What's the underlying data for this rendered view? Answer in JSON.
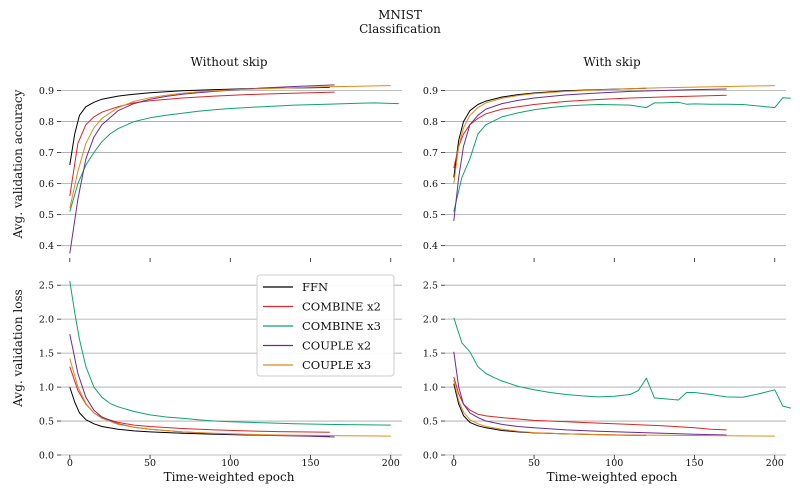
{
  "figure": {
    "title_line1": "MNIST",
    "title_line2": "Classification",
    "col_titles": [
      "Without skip",
      "With skip"
    ],
    "ylabels": [
      "Avg. validation accuracy",
      "Avg. validation loss"
    ],
    "xlabel": "Time-weighted epoch"
  },
  "colors": {
    "FFN": "#000000",
    "COMBINE x2": "#d62728",
    "COMBINE x3": "#10a36b",
    "COUPLE x2": "#6a2c91",
    "COUPLE x3": "#e08a1e"
  },
  "legend": [
    "FFN",
    "COMBINE x2",
    "COMBINE x3",
    "COUPLE x2",
    "COUPLE x3"
  ],
  "chart_data": [
    {
      "type": "line",
      "title": "Without skip",
      "ylabel": "Avg. validation accuracy",
      "xlabel": "",
      "xlim": [
        -8,
        207
      ],
      "ylim": [
        0.37,
        0.95
      ],
      "xticks": [
        0,
        50,
        100,
        150,
        200
      ],
      "yticks": [
        0.4,
        0.5,
        0.6,
        0.7,
        0.8,
        0.9
      ],
      "show_xticklabels": false,
      "series": [
        {
          "name": "FFN",
          "x": [
            0,
            3,
            6,
            10,
            15,
            20,
            30,
            40,
            50,
            70,
            90,
            110,
            130,
            150,
            162
          ],
          "y": [
            0.66,
            0.76,
            0.82,
            0.848,
            0.862,
            0.872,
            0.882,
            0.888,
            0.893,
            0.899,
            0.903,
            0.906,
            0.908,
            0.909,
            0.91
          ]
        },
        {
          "name": "COMBINE x2",
          "x": [
            0,
            5,
            10,
            15,
            20,
            30,
            40,
            50,
            70,
            90,
            110,
            130,
            150,
            165
          ],
          "y": [
            0.56,
            0.73,
            0.79,
            0.815,
            0.83,
            0.848,
            0.86,
            0.867,
            0.876,
            0.882,
            0.887,
            0.89,
            0.893,
            0.895
          ]
        },
        {
          "name": "COMBINE x3",
          "x": [
            0,
            5,
            10,
            15,
            20,
            25,
            30,
            40,
            50,
            60,
            70,
            80,
            90,
            100,
            120,
            140,
            160,
            180,
            190,
            205
          ],
          "y": [
            0.51,
            0.6,
            0.66,
            0.7,
            0.735,
            0.76,
            0.777,
            0.8,
            0.812,
            0.82,
            0.827,
            0.833,
            0.838,
            0.842,
            0.848,
            0.853,
            0.856,
            0.859,
            0.86,
            0.858
          ]
        },
        {
          "name": "COUPLE x2",
          "x": [
            0,
            5,
            10,
            15,
            20,
            30,
            40,
            50,
            60,
            70,
            80,
            90,
            100,
            120,
            140,
            165
          ],
          "y": [
            0.375,
            0.55,
            0.68,
            0.75,
            0.79,
            0.835,
            0.858,
            0.872,
            0.881,
            0.888,
            0.893,
            0.897,
            0.901,
            0.908,
            0.913,
            0.918
          ]
        },
        {
          "name": "COUPLE x3",
          "x": [
            0,
            5,
            10,
            15,
            20,
            30,
            40,
            50,
            60,
            70,
            80,
            100,
            120,
            140,
            160,
            180,
            200
          ],
          "y": [
            0.52,
            0.64,
            0.73,
            0.78,
            0.81,
            0.845,
            0.865,
            0.877,
            0.885,
            0.891,
            0.896,
            0.902,
            0.906,
            0.909,
            0.912,
            0.914,
            0.916
          ]
        }
      ]
    },
    {
      "type": "line",
      "title": "With skip",
      "ylabel": "",
      "xlabel": "",
      "xlim": [
        -8,
        207
      ],
      "ylim": [
        0.37,
        0.95
      ],
      "xticks": [
        0,
        50,
        100,
        150,
        200
      ],
      "yticks": [
        0.4,
        0.5,
        0.6,
        0.7,
        0.8,
        0.9
      ],
      "show_xticklabels": false,
      "series": [
        {
          "name": "FFN",
          "x": [
            0,
            3,
            6,
            10,
            15,
            20,
            30,
            40,
            50,
            70,
            90,
            110,
            120
          ],
          "y": [
            0.62,
            0.74,
            0.8,
            0.835,
            0.855,
            0.866,
            0.879,
            0.887,
            0.892,
            0.899,
            0.903,
            0.906,
            0.907
          ]
        },
        {
          "name": "COMBINE x2",
          "x": [
            0,
            3,
            6,
            10,
            15,
            20,
            30,
            40,
            50,
            70,
            90,
            110,
            130,
            150,
            170
          ],
          "y": [
            0.65,
            0.72,
            0.76,
            0.79,
            0.81,
            0.825,
            0.84,
            0.848,
            0.855,
            0.865,
            0.871,
            0.876,
            0.879,
            0.882,
            0.885
          ]
        },
        {
          "name": "COMBINE x3",
          "x": [
            0,
            5,
            10,
            15,
            20,
            30,
            40,
            50,
            60,
            70,
            80,
            90,
            100,
            110,
            120,
            125,
            130,
            140,
            145,
            150,
            160,
            170,
            180,
            190,
            200,
            205,
            210
          ],
          "y": [
            0.51,
            0.62,
            0.68,
            0.76,
            0.79,
            0.815,
            0.828,
            0.838,
            0.845,
            0.85,
            0.853,
            0.855,
            0.854,
            0.853,
            0.845,
            0.86,
            0.86,
            0.862,
            0.856,
            0.857,
            0.856,
            0.856,
            0.855,
            0.85,
            0.845,
            0.877,
            0.875
          ]
        },
        {
          "name": "COUPLE x2",
          "x": [
            0,
            3,
            6,
            10,
            15,
            20,
            30,
            40,
            50,
            70,
            90,
            110,
            130,
            150,
            170
          ],
          "y": [
            0.48,
            0.62,
            0.72,
            0.79,
            0.82,
            0.84,
            0.858,
            0.868,
            0.876,
            0.886,
            0.892,
            0.897,
            0.9,
            0.903,
            0.905
          ]
        },
        {
          "name": "COUPLE x3",
          "x": [
            0,
            3,
            6,
            10,
            15,
            20,
            30,
            40,
            50,
            70,
            90,
            110,
            130,
            150,
            170,
            190,
            200
          ],
          "y": [
            0.6,
            0.72,
            0.78,
            0.82,
            0.845,
            0.86,
            0.875,
            0.884,
            0.89,
            0.897,
            0.902,
            0.906,
            0.909,
            0.911,
            0.913,
            0.915,
            0.916
          ]
        }
      ]
    },
    {
      "type": "line",
      "title": "",
      "ylabel": "Avg. validation loss",
      "xlabel": "Time-weighted epoch",
      "xlim": [
        -8,
        207
      ],
      "ylim": [
        0,
        2.65
      ],
      "xticks": [
        0,
        50,
        100,
        150,
        200
      ],
      "xticklabels": [
        "0",
        "50",
        "100",
        "150",
        "200"
      ],
      "yticks": [
        0.0,
        0.5,
        1.0,
        1.5,
        2.0,
        2.5
      ],
      "yticklabels": [
        "0.0",
        "0.5",
        "1.0",
        "1.5",
        "2.0",
        "2.5"
      ],
      "show_xticklabels": true,
      "legend_position": "upper-left",
      "series": [
        {
          "name": "FFN",
          "x": [
            0,
            3,
            6,
            10,
            15,
            20,
            30,
            40,
            50,
            70,
            90,
            110,
            130,
            150,
            162
          ],
          "y": [
            1.0,
            0.78,
            0.62,
            0.52,
            0.46,
            0.42,
            0.38,
            0.355,
            0.34,
            0.32,
            0.305,
            0.295,
            0.288,
            0.282,
            0.28
          ]
        },
        {
          "name": "COMBINE x2",
          "x": [
            0,
            5,
            10,
            15,
            20,
            30,
            40,
            50,
            70,
            90,
            110,
            130,
            150,
            162
          ],
          "y": [
            1.3,
            0.95,
            0.75,
            0.62,
            0.55,
            0.48,
            0.44,
            0.42,
            0.39,
            0.37,
            0.355,
            0.345,
            0.338,
            0.335
          ]
        },
        {
          "name": "COMBINE x3",
          "x": [
            0,
            3,
            6,
            10,
            15,
            20,
            25,
            30,
            40,
            50,
            60,
            70,
            80,
            90,
            100,
            120,
            140,
            160,
            180,
            200
          ],
          "y": [
            2.56,
            2.1,
            1.7,
            1.3,
            1.0,
            0.85,
            0.76,
            0.71,
            0.64,
            0.59,
            0.56,
            0.54,
            0.52,
            0.5,
            0.49,
            0.475,
            0.46,
            0.45,
            0.445,
            0.44
          ]
        },
        {
          "name": "COUPLE x2",
          "x": [
            0,
            5,
            10,
            15,
            20,
            30,
            40,
            50,
            70,
            90,
            110,
            130,
            150,
            165
          ],
          "y": [
            1.78,
            1.2,
            0.85,
            0.66,
            0.56,
            0.46,
            0.41,
            0.38,
            0.34,
            0.315,
            0.3,
            0.285,
            0.275,
            0.265
          ]
        },
        {
          "name": "COUPLE x3",
          "x": [
            0,
            5,
            10,
            15,
            20,
            30,
            40,
            50,
            70,
            90,
            110,
            130,
            150,
            170,
            200
          ],
          "y": [
            1.42,
            1.0,
            0.76,
            0.62,
            0.54,
            0.45,
            0.41,
            0.38,
            0.34,
            0.32,
            0.305,
            0.295,
            0.288,
            0.282,
            0.278
          ]
        }
      ]
    },
    {
      "type": "line",
      "title": "",
      "ylabel": "",
      "xlabel": "Time-weighted epoch",
      "xlim": [
        -8,
        207
      ],
      "ylim": [
        0,
        2.65
      ],
      "xticks": [
        0,
        50,
        100,
        150,
        200
      ],
      "xticklabels": [
        "0",
        "50",
        "100",
        "150",
        "200"
      ],
      "yticks": [
        0.0,
        0.5,
        1.0,
        1.5,
        2.0,
        2.5
      ],
      "yticklabels": [
        "0.0",
        "0.5",
        "1.0",
        "1.5",
        "2.0",
        "2.5"
      ],
      "show_xticklabels": true,
      "series": [
        {
          "name": "FFN",
          "x": [
            0,
            3,
            6,
            10,
            15,
            20,
            30,
            40,
            50,
            70,
            90,
            110,
            120
          ],
          "y": [
            1.05,
            0.75,
            0.58,
            0.48,
            0.43,
            0.4,
            0.36,
            0.34,
            0.325,
            0.31,
            0.3,
            0.292,
            0.29
          ]
        },
        {
          "name": "COMBINE x2",
          "x": [
            0,
            3,
            6,
            10,
            15,
            20,
            30,
            40,
            50,
            70,
            90,
            110,
            130,
            150,
            160,
            170
          ],
          "y": [
            1.15,
            0.9,
            0.75,
            0.66,
            0.6,
            0.575,
            0.55,
            0.53,
            0.51,
            0.49,
            0.47,
            0.45,
            0.43,
            0.4,
            0.38,
            0.37
          ]
        },
        {
          "name": "COMBINE x3",
          "x": [
            0,
            5,
            10,
            15,
            20,
            25,
            30,
            40,
            50,
            60,
            70,
            80,
            90,
            100,
            110,
            115,
            120,
            125,
            130,
            140,
            145,
            150,
            160,
            170,
            180,
            190,
            200,
            205,
            210
          ],
          "y": [
            2.02,
            1.65,
            1.52,
            1.3,
            1.2,
            1.14,
            1.09,
            1.01,
            0.96,
            0.92,
            0.89,
            0.87,
            0.855,
            0.865,
            0.89,
            0.95,
            1.13,
            0.84,
            0.83,
            0.81,
            0.92,
            0.92,
            0.89,
            0.855,
            0.85,
            0.9,
            0.96,
            0.72,
            0.69
          ]
        },
        {
          "name": "COUPLE x2",
          "x": [
            0,
            3,
            6,
            10,
            15,
            20,
            30,
            40,
            50,
            70,
            90,
            110,
            130,
            150,
            170
          ],
          "y": [
            1.52,
            1.0,
            0.75,
            0.62,
            0.55,
            0.5,
            0.45,
            0.42,
            0.4,
            0.37,
            0.35,
            0.335,
            0.32,
            0.305,
            0.295
          ]
        },
        {
          "name": "COUPLE x3",
          "x": [
            0,
            3,
            6,
            10,
            15,
            20,
            30,
            40,
            50,
            70,
            90,
            110,
            130,
            150,
            170,
            190,
            200
          ],
          "y": [
            1.1,
            0.8,
            0.63,
            0.52,
            0.46,
            0.42,
            0.38,
            0.35,
            0.33,
            0.31,
            0.3,
            0.295,
            0.29,
            0.287,
            0.283,
            0.28,
            0.278
          ]
        }
      ]
    }
  ]
}
